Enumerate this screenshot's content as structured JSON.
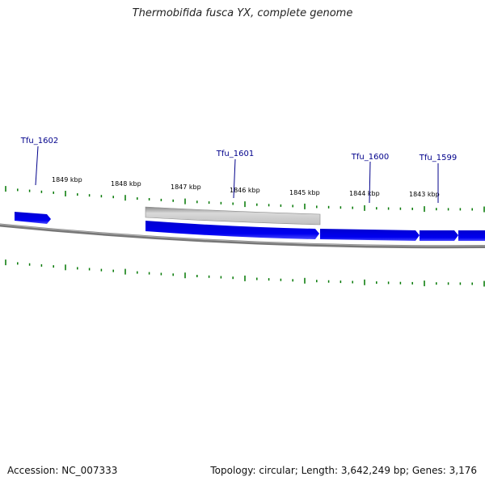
{
  "title": "Thermobifida fusca YX, complete genome",
  "footer": {
    "accession": "Accession: NC_007333",
    "summary": "Topology: circular; Length: 3,642,249 bp; Genes: 3,176"
  },
  "colors": {
    "gene": "#0000e0",
    "gene_highlight": "#3333ff",
    "selected_gene": "#bdbdbd",
    "backbone": "#777777",
    "tick": "#007700",
    "gene_label": "#00008b",
    "scale_label": "#000000"
  },
  "scale_labels": [
    "1849 kbp",
    "1848 kbp",
    "1847 kbp",
    "1846 kbp",
    "1845 kbp",
    "1844 kbp",
    "1843 kbp"
  ],
  "gene_labels": [
    "Tfu_1602",
    "Tfu_1601",
    "Tfu_1600",
    "Tfu_1599"
  ]
}
